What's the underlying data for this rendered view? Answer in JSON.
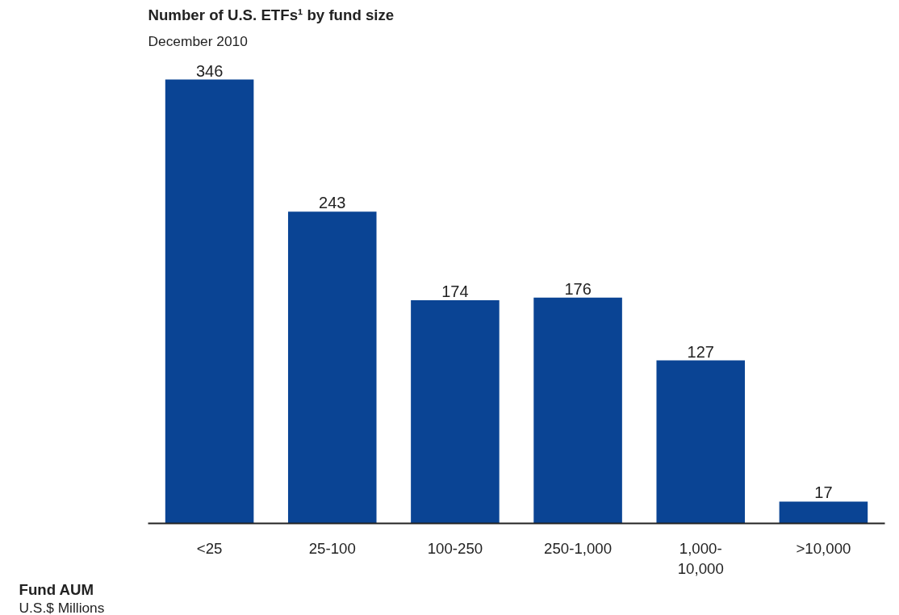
{
  "chart_data": {
    "type": "bar",
    "title": "Number of U.S. ETFs¹ by fund size",
    "subtitle": "December 2010",
    "xlabel": "Fund AUM",
    "annotations": [
      "U.S.$ Millions"
    ],
    "categories": [
      "<25",
      "25-100",
      "100-250",
      "250-1,000",
      "1,000-10,000",
      ">10,000"
    ],
    "values": [
      346,
      243,
      174,
      176,
      127,
      17
    ],
    "color": "#0a4494",
    "data_labels": true,
    "grid": false
  }
}
